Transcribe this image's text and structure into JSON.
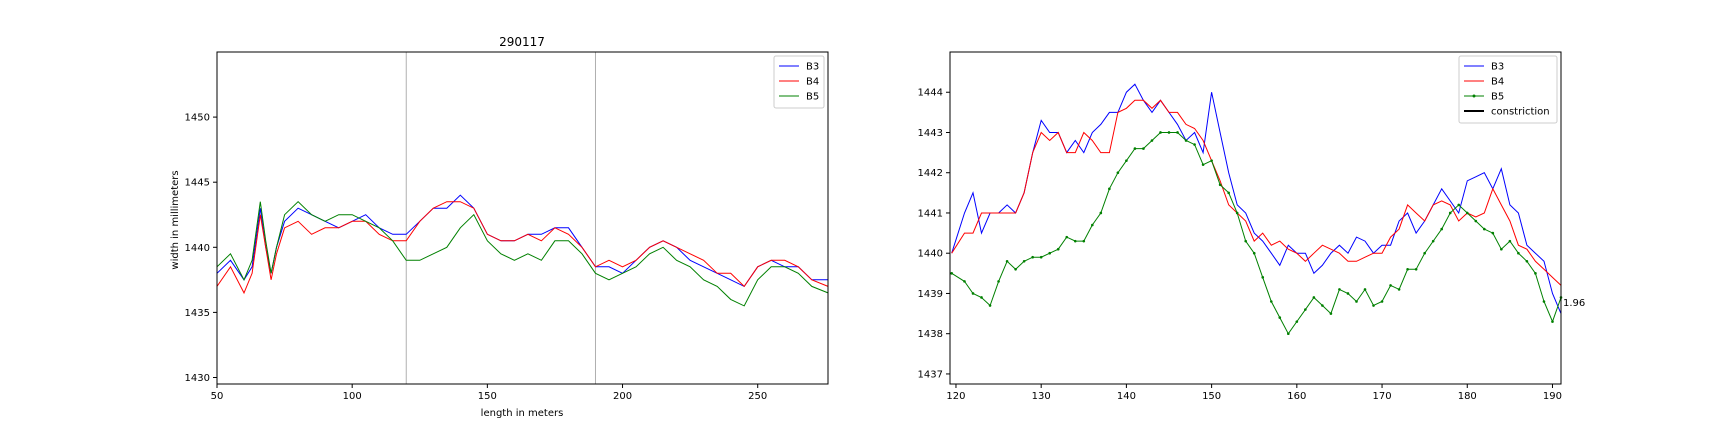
{
  "chart_data": [
    {
      "type": "line",
      "title": "290117",
      "xlabel": "length in meters",
      "ylabel": "width in millimeters",
      "xlim": [
        50,
        276
      ],
      "ylim": [
        1429.5,
        1455
      ],
      "xticks": [
        50,
        100,
        150,
        200,
        250
      ],
      "yticks": [
        1430,
        1435,
        1440,
        1445,
        1450
      ],
      "vlines": [
        120,
        190
      ],
      "grid": false,
      "legend_position": "top-right",
      "series": [
        {
          "name": "B3",
          "color": "#0000ff",
          "marker": false,
          "x": [
            50,
            55,
            60,
            63,
            66,
            68,
            70,
            72,
            75,
            80,
            85,
            90,
            95,
            100,
            105,
            110,
            115,
            120,
            125,
            130,
            135,
            140,
            145,
            150,
            155,
            160,
            165,
            170,
            175,
            180,
            185,
            190,
            195,
            200,
            205,
            210,
            215,
            220,
            225,
            230,
            235,
            240,
            245,
            250,
            255,
            260,
            265,
            270,
            276
          ],
          "y": [
            1438,
            1439,
            1437.5,
            1438.5,
            1443,
            1440,
            1438,
            1440,
            1442,
            1443,
            1442.5,
            1442,
            1441.5,
            1442,
            1442.5,
            1441.5,
            1441,
            1441,
            1442,
            1443,
            1443,
            1444,
            1443,
            1441,
            1440.5,
            1440.5,
            1441,
            1441,
            1441.5,
            1441.5,
            1440,
            1438.5,
            1438.5,
            1438,
            1439,
            1440,
            1440.5,
            1440,
            1439,
            1438.5,
            1438,
            1437.5,
            1437,
            1438.5,
            1439,
            1438.5,
            1438.5,
            1437.5,
            1437.5
          ]
        },
        {
          "name": "B4",
          "color": "#ff0000",
          "marker": false,
          "x": [
            50,
            55,
            60,
            63,
            66,
            68,
            70,
            72,
            75,
            80,
            85,
            90,
            95,
            100,
            105,
            110,
            115,
            120,
            125,
            130,
            135,
            140,
            145,
            150,
            155,
            160,
            165,
            170,
            175,
            180,
            185,
            190,
            195,
            200,
            205,
            210,
            215,
            220,
            225,
            230,
            235,
            240,
            245,
            250,
            255,
            260,
            265,
            270,
            276
          ],
          "y": [
            1437,
            1438.5,
            1436.5,
            1438,
            1442.5,
            1440,
            1437.5,
            1439.5,
            1441.5,
            1442,
            1441,
            1441.5,
            1441.5,
            1442,
            1442,
            1441,
            1440.5,
            1440.5,
            1442,
            1443,
            1443.5,
            1443.5,
            1443,
            1441,
            1440.5,
            1440.5,
            1441,
            1440.5,
            1441.5,
            1441,
            1440,
            1438.5,
            1439,
            1438.5,
            1439,
            1440,
            1440.5,
            1440,
            1439.5,
            1439,
            1438,
            1438,
            1437,
            1438.5,
            1439,
            1439,
            1438.5,
            1437.5,
            1437
          ]
        },
        {
          "name": "B5",
          "color": "#008000",
          "marker": false,
          "x": [
            50,
            55,
            60,
            63,
            66,
            68,
            70,
            72,
            75,
            80,
            85,
            90,
            95,
            100,
            105,
            110,
            115,
            120,
            125,
            130,
            135,
            140,
            145,
            150,
            155,
            160,
            165,
            170,
            175,
            180,
            185,
            190,
            195,
            200,
            205,
            210,
            215,
            220,
            225,
            230,
            235,
            240,
            245,
            250,
            255,
            260,
            265,
            270,
            276
          ],
          "y": [
            1438.5,
            1439.5,
            1437.5,
            1439,
            1443.5,
            1440.5,
            1438,
            1440,
            1442.5,
            1443.5,
            1442.5,
            1442,
            1442.5,
            1442.5,
            1442,
            1441.5,
            1440.5,
            1439,
            1439,
            1439.5,
            1440,
            1441.5,
            1442.5,
            1440.5,
            1439.5,
            1439,
            1439.5,
            1439,
            1440.5,
            1440.5,
            1439.5,
            1438,
            1437.5,
            1438,
            1438.5,
            1439.5,
            1440,
            1439,
            1438.5,
            1437.5,
            1437,
            1436,
            1435.5,
            1437.5,
            1438.5,
            1438.5,
            1438,
            1437,
            1436.5
          ]
        }
      ]
    },
    {
      "type": "line",
      "title": "",
      "xlabel": "",
      "ylabel": "",
      "xlim": [
        119.3,
        191
      ],
      "ylim": [
        1436.75,
        1445
      ],
      "xticks": [
        120,
        130,
        140,
        150,
        160,
        170,
        180,
        190
      ],
      "yticks": [
        1437,
        1438,
        1439,
        1440,
        1441,
        1442,
        1443,
        1444
      ],
      "grid": false,
      "legend_position": "top-right",
      "annotation": {
        "text": "1.96",
        "x": 191,
        "y": 1439.3
      },
      "series": [
        {
          "name": "B3",
          "color": "#0000ff",
          "marker": false,
          "x": [
            119.5,
            121,
            122,
            123,
            124,
            125,
            126,
            127,
            128,
            129,
            130,
            131,
            132,
            133,
            134,
            135,
            136,
            137,
            138,
            139,
            140,
            141,
            142,
            143,
            144,
            145,
            146,
            147,
            148,
            149,
            150,
            151,
            152,
            153,
            154,
            155,
            156,
            157,
            158,
            159,
            160,
            161,
            162,
            163,
            164,
            165,
            166,
            167,
            168,
            169,
            170,
            171,
            172,
            173,
            174,
            175,
            176,
            177,
            178,
            179,
            180,
            181,
            182,
            183,
            184,
            185,
            186,
            187,
            188,
            189,
            190,
            191
          ],
          "y": [
            1440,
            1441,
            1441.5,
            1440.5,
            1441,
            1441,
            1441.2,
            1441,
            1441.5,
            1442.5,
            1443.3,
            1443,
            1443,
            1442.5,
            1442.8,
            1442.5,
            1443,
            1443.2,
            1443.5,
            1443.5,
            1444,
            1444.2,
            1443.8,
            1443.5,
            1443.8,
            1443.5,
            1443.2,
            1442.8,
            1443,
            1442.5,
            1444,
            1443,
            1442,
            1441.2,
            1441,
            1440.5,
            1440.3,
            1440,
            1439.7,
            1440.2,
            1440,
            1440,
            1439.5,
            1439.7,
            1440,
            1440.2,
            1440,
            1440.4,
            1440.3,
            1440,
            1440.2,
            1440.2,
            1440.8,
            1441,
            1440.5,
            1440.8,
            1441.2,
            1441.6,
            1441.3,
            1441,
            1441.8,
            1441.9,
            1442,
            1441.6,
            1442.1,
            1441.2,
            1441,
            1440.2,
            1440,
            1439.8,
            1439,
            1438.5
          ]
        },
        {
          "name": "B4",
          "color": "#ff0000",
          "marker": false,
          "x": [
            119.5,
            121,
            122,
            123,
            124,
            125,
            126,
            127,
            128,
            129,
            130,
            131,
            132,
            133,
            134,
            135,
            136,
            137,
            138,
            139,
            140,
            141,
            142,
            143,
            144,
            145,
            146,
            147,
            148,
            149,
            150,
            151,
            152,
            153,
            154,
            155,
            156,
            157,
            158,
            159,
            160,
            161,
            162,
            163,
            164,
            165,
            166,
            167,
            168,
            169,
            170,
            171,
            172,
            173,
            174,
            175,
            176,
            177,
            178,
            179,
            180,
            181,
            182,
            183,
            184,
            185,
            186,
            187,
            188,
            189,
            190,
            191
          ],
          "y": [
            1440,
            1440.5,
            1440.5,
            1441,
            1441,
            1441,
            1441,
            1441,
            1441.5,
            1442.5,
            1443,
            1442.8,
            1443,
            1442.5,
            1442.5,
            1443,
            1442.8,
            1442.5,
            1442.5,
            1443.5,
            1443.6,
            1443.8,
            1443.8,
            1443.6,
            1443.8,
            1443.5,
            1443.5,
            1443.2,
            1443.1,
            1442.8,
            1442.3,
            1441.8,
            1441.2,
            1441,
            1440.8,
            1440.3,
            1440.5,
            1440.2,
            1440.3,
            1440.1,
            1440,
            1439.8,
            1440,
            1440.2,
            1440.1,
            1440,
            1439.8,
            1439.8,
            1439.9,
            1440,
            1440,
            1440.4,
            1440.6,
            1441.2,
            1441,
            1440.8,
            1441.2,
            1441.3,
            1441.2,
            1440.8,
            1441,
            1440.9,
            1441,
            1441.6,
            1441.2,
            1440.8,
            1440.2,
            1440.1,
            1439.8,
            1439.6,
            1439.4,
            1439.2
          ]
        },
        {
          "name": "B5",
          "color": "#008000",
          "marker": true,
          "x": [
            119.5,
            121,
            122,
            123,
            124,
            125,
            126,
            127,
            128,
            129,
            130,
            131,
            132,
            133,
            134,
            135,
            136,
            137,
            138,
            139,
            140,
            141,
            142,
            143,
            144,
            145,
            146,
            147,
            148,
            149,
            150,
            151,
            152,
            153,
            154,
            155,
            156,
            157,
            158,
            159,
            160,
            161,
            162,
            163,
            164,
            165,
            166,
            167,
            168,
            169,
            170,
            171,
            172,
            173,
            174,
            175,
            176,
            177,
            178,
            179,
            180,
            181,
            182,
            183,
            184,
            185,
            186,
            187,
            188,
            189,
            190,
            191
          ],
          "y": [
            1439.5,
            1439.3,
            1439,
            1438.9,
            1438.7,
            1439.3,
            1439.8,
            1439.6,
            1439.8,
            1439.9,
            1439.9,
            1440,
            1440.1,
            1440.4,
            1440.3,
            1440.3,
            1440.7,
            1441,
            1441.6,
            1442,
            1442.3,
            1442.6,
            1442.6,
            1442.8,
            1443,
            1443,
            1443,
            1442.8,
            1442.7,
            1442.2,
            1442.3,
            1441.7,
            1441.5,
            1441,
            1440.3,
            1440,
            1439.4,
            1438.8,
            1438.4,
            1438,
            1438.3,
            1438.6,
            1438.9,
            1438.7,
            1438.5,
            1439.1,
            1439,
            1438.8,
            1439.1,
            1438.7,
            1438.8,
            1439.2,
            1439.1,
            1439.6,
            1439.6,
            1440,
            1440.3,
            1440.6,
            1441,
            1441.2,
            1441,
            1440.8,
            1440.6,
            1440.5,
            1440.1,
            1440.3,
            1440,
            1439.8,
            1439.5,
            1438.8,
            1438.3,
            1438.9
          ]
        },
        {
          "name": "constriction",
          "color": "#000000",
          "marker": false,
          "x": [],
          "y": []
        }
      ]
    }
  ]
}
